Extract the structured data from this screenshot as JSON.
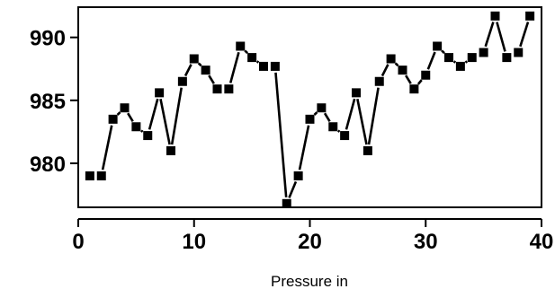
{
  "chart_data": {
    "type": "line",
    "title": "",
    "xlabel": "Pressure in",
    "ylabel": "",
    "xlim": [
      0,
      40
    ],
    "ylim": [
      976.5,
      992.4
    ],
    "x_ticks": [
      0,
      10,
      20,
      30,
      40
    ],
    "y_ticks": [
      980,
      985,
      990
    ],
    "grid": false,
    "legend": "none",
    "line_style": "dashed",
    "marker": "square",
    "colors": {
      "line": "#000000",
      "marker": "#000000",
      "frame": "#000000"
    },
    "series": [
      {
        "x": [
          1,
          2,
          3,
          4,
          5,
          6,
          7,
          8,
          9,
          10,
          11,
          12,
          13,
          14,
          15,
          16,
          17,
          18,
          19,
          20,
          21,
          22,
          23,
          24,
          25,
          26,
          27,
          28,
          29,
          30,
          31,
          32,
          33,
          34,
          35,
          36,
          37,
          38,
          39
        ],
        "values": [
          979.0,
          979.0,
          983.5,
          984.4,
          982.9,
          982.2,
          985.6,
          981.0,
          986.5,
          988.3,
          987.4,
          985.9,
          985.9,
          989.3,
          988.4,
          987.7,
          987.7,
          976.8,
          979.0,
          983.5,
          984.4,
          982.9,
          982.2,
          985.6,
          981.0,
          986.5,
          988.3,
          987.4,
          985.9,
          987.0,
          989.3,
          988.4,
          987.7,
          988.4,
          988.8,
          991.7,
          988.4,
          988.8,
          991.7
        ]
      }
    ]
  }
}
